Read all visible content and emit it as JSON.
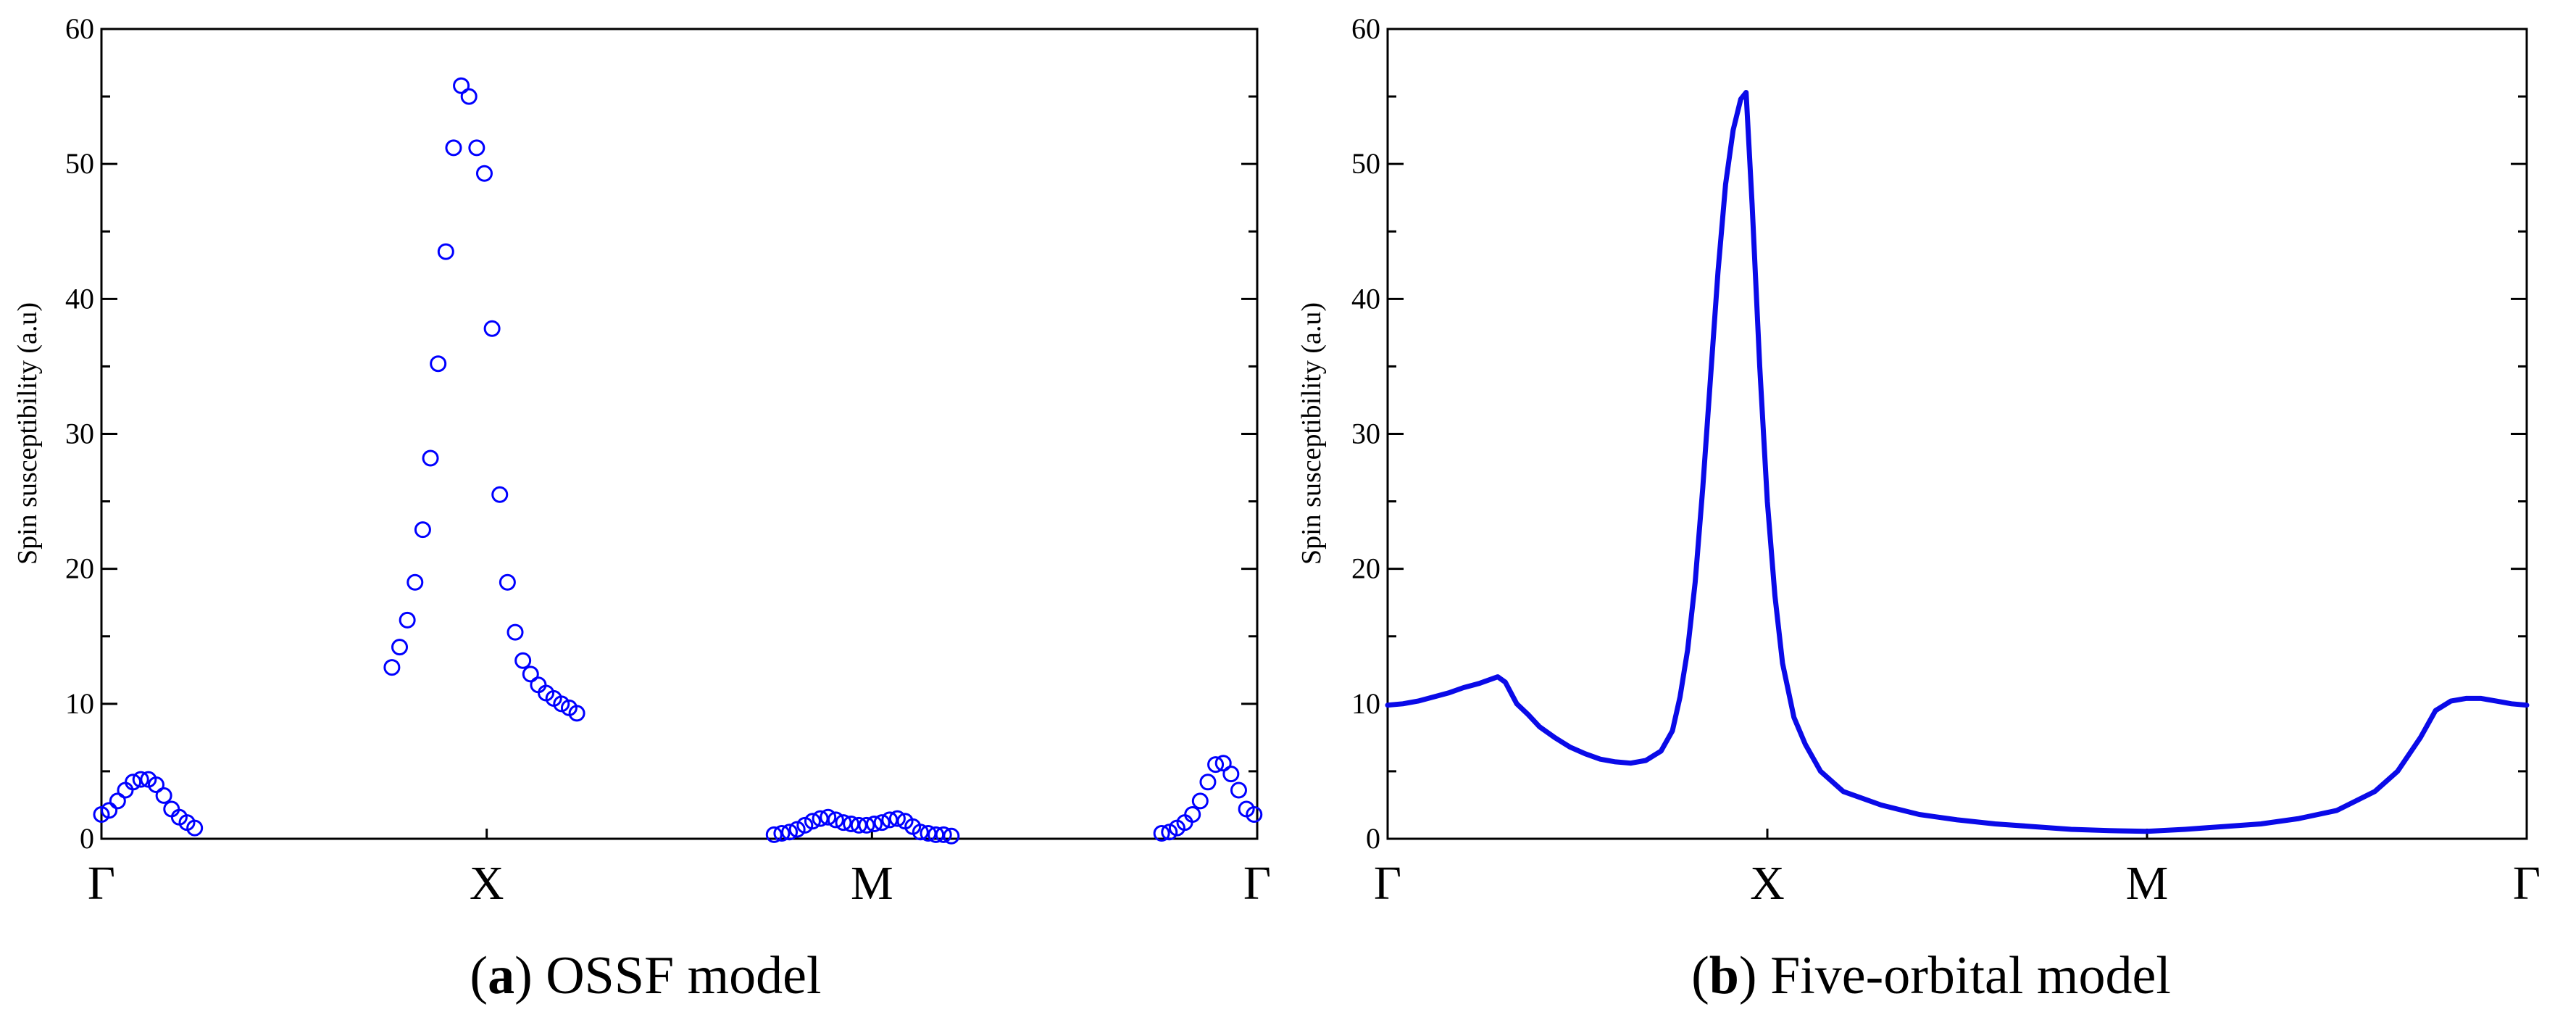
{
  "chart_data": [
    {
      "panel_id": "a",
      "type": "scatter",
      "caption_tag": "a",
      "caption_text": "OSSF model",
      "title": "",
      "xlabel": "",
      "ylabel": "Spin susceptibility (a.u)",
      "ylim": [
        0,
        60
      ],
      "xlim": [
        0,
        1.5
      ],
      "yticks": [
        0,
        10,
        20,
        30,
        40,
        50,
        60
      ],
      "ytick_labels": [
        "0",
        "10",
        "20",
        "30",
        "40",
        "50",
        "60"
      ],
      "xtick_positions": [
        0,
        0.5,
        1.0,
        1.5
      ],
      "xtick_labels": [
        "Γ",
        "X",
        "M",
        "Γ"
      ],
      "marker_color": "#0000ff",
      "series": [
        {
          "name": "OSSF",
          "points": [
            [
              0.0,
              1.8
            ],
            [
              0.01,
              2.1
            ],
            [
              0.021,
              2.8
            ],
            [
              0.031,
              3.6
            ],
            [
              0.041,
              4.2
            ],
            [
              0.051,
              4.4
            ],
            [
              0.061,
              4.4
            ],
            [
              0.071,
              4.0
            ],
            [
              0.081,
              3.2
            ],
            [
              0.091,
              2.2
            ],
            [
              0.101,
              1.6
            ],
            [
              0.111,
              1.2
            ],
            [
              0.121,
              0.8
            ],
            [
              0.377,
              12.7
            ],
            [
              0.387,
              14.2
            ],
            [
              0.397,
              16.2
            ],
            [
              0.407,
              19.0
            ],
            [
              0.417,
              22.9
            ],
            [
              0.427,
              28.2
            ],
            [
              0.437,
              35.2
            ],
            [
              0.447,
              43.5
            ],
            [
              0.457,
              51.2
            ],
            [
              0.467,
              55.8
            ],
            [
              0.477,
              55.0
            ],
            [
              0.487,
              51.2
            ],
            [
              0.497,
              49.3
            ],
            [
              0.507,
              37.8
            ],
            [
              0.517,
              25.5
            ],
            [
              0.527,
              19.0
            ],
            [
              0.537,
              15.3
            ],
            [
              0.547,
              13.2
            ],
            [
              0.557,
              12.2
            ],
            [
              0.567,
              11.4
            ],
            [
              0.577,
              10.8
            ],
            [
              0.587,
              10.4
            ],
            [
              0.597,
              10.0
            ],
            [
              0.607,
              9.7
            ],
            [
              0.617,
              9.3
            ],
            [
              0.873,
              0.3
            ],
            [
              0.883,
              0.4
            ],
            [
              0.893,
              0.5
            ],
            [
              0.903,
              0.7
            ],
            [
              0.913,
              1.0
            ],
            [
              0.923,
              1.3
            ],
            [
              0.933,
              1.5
            ],
            [
              0.943,
              1.6
            ],
            [
              0.953,
              1.4
            ],
            [
              0.963,
              1.2
            ],
            [
              0.973,
              1.1
            ],
            [
              0.983,
              1.0
            ],
            [
              0.993,
              1.0
            ],
            [
              1.003,
              1.1
            ],
            [
              1.013,
              1.2
            ],
            [
              1.023,
              1.4
            ],
            [
              1.033,
              1.5
            ],
            [
              1.043,
              1.3
            ],
            [
              1.053,
              0.9
            ],
            [
              1.063,
              0.5
            ],
            [
              1.073,
              0.4
            ],
            [
              1.083,
              0.3
            ],
            [
              1.093,
              0.3
            ],
            [
              1.103,
              0.2
            ],
            [
              1.376,
              0.4
            ],
            [
              1.386,
              0.5
            ],
            [
              1.396,
              0.8
            ],
            [
              1.406,
              1.2
            ],
            [
              1.416,
              1.8
            ],
            [
              1.426,
              2.8
            ],
            [
              1.436,
              4.2
            ],
            [
              1.446,
              5.5
            ],
            [
              1.456,
              5.6
            ],
            [
              1.466,
              4.8
            ],
            [
              1.476,
              3.6
            ],
            [
              1.486,
              2.2
            ],
            [
              1.496,
              1.8
            ]
          ]
        }
      ]
    },
    {
      "panel_id": "b",
      "type": "line",
      "caption_tag": "b",
      "caption_text": "Five-orbital model",
      "title": "",
      "xlabel": "",
      "ylabel": "Spin susceptibility (a.u)",
      "ylim": [
        0,
        60
      ],
      "xlim": [
        0,
        1.5
      ],
      "yticks": [
        0,
        10,
        20,
        30,
        40,
        50,
        60
      ],
      "ytick_labels": [
        "0",
        "10",
        "20",
        "30",
        "40",
        "50",
        "60"
      ],
      "xtick_positions": [
        0,
        0.5,
        1.0,
        1.5
      ],
      "xtick_labels": [
        "Γ",
        "X",
        "M",
        "Γ"
      ],
      "line_color": "#0a0ae8",
      "series": [
        {
          "name": "Five-orbital",
          "points": [
            [
              0.0,
              9.9
            ],
            [
              0.02,
              10.0
            ],
            [
              0.04,
              10.2
            ],
            [
              0.06,
              10.5
            ],
            [
              0.08,
              10.8
            ],
            [
              0.1,
              11.2
            ],
            [
              0.12,
              11.5
            ],
            [
              0.135,
              11.8
            ],
            [
              0.145,
              12.0
            ],
            [
              0.155,
              11.6
            ],
            [
              0.17,
              10.0
            ],
            [
              0.185,
              9.2
            ],
            [
              0.2,
              8.3
            ],
            [
              0.22,
              7.5
            ],
            [
              0.24,
              6.8
            ],
            [
              0.26,
              6.3
            ],
            [
              0.28,
              5.9
            ],
            [
              0.3,
              5.7
            ],
            [
              0.32,
              5.6
            ],
            [
              0.34,
              5.8
            ],
            [
              0.36,
              6.5
            ],
            [
              0.375,
              8.0
            ],
            [
              0.385,
              10.5
            ],
            [
              0.395,
              14.0
            ],
            [
              0.405,
              19.0
            ],
            [
              0.415,
              26.0
            ],
            [
              0.425,
              34.0
            ],
            [
              0.435,
              42.0
            ],
            [
              0.445,
              48.5
            ],
            [
              0.455,
              52.5
            ],
            [
              0.465,
              54.8
            ],
            [
              0.472,
              55.3
            ],
            [
              0.48,
              47.0
            ],
            [
              0.49,
              35.0
            ],
            [
              0.5,
              25.0
            ],
            [
              0.51,
              18.0
            ],
            [
              0.52,
              13.0
            ],
            [
              0.535,
              9.0
            ],
            [
              0.55,
              7.0
            ],
            [
              0.57,
              5.0
            ],
            [
              0.6,
              3.5
            ],
            [
              0.65,
              2.5
            ],
            [
              0.7,
              1.8
            ],
            [
              0.75,
              1.4
            ],
            [
              0.8,
              1.1
            ],
            [
              0.85,
              0.9
            ],
            [
              0.9,
              0.7
            ],
            [
              0.95,
              0.6
            ],
            [
              1.0,
              0.55
            ],
            [
              1.05,
              0.7
            ],
            [
              1.1,
              0.9
            ],
            [
              1.15,
              1.1
            ],
            [
              1.2,
              1.5
            ],
            [
              1.25,
              2.1
            ],
            [
              1.3,
              3.5
            ],
            [
              1.33,
              5.0
            ],
            [
              1.36,
              7.5
            ],
            [
              1.38,
              9.5
            ],
            [
              1.4,
              10.2
            ],
            [
              1.42,
              10.4
            ],
            [
              1.44,
              10.4
            ],
            [
              1.46,
              10.2
            ],
            [
              1.48,
              10.0
            ],
            [
              1.5,
              9.9
            ]
          ]
        }
      ]
    }
  ]
}
